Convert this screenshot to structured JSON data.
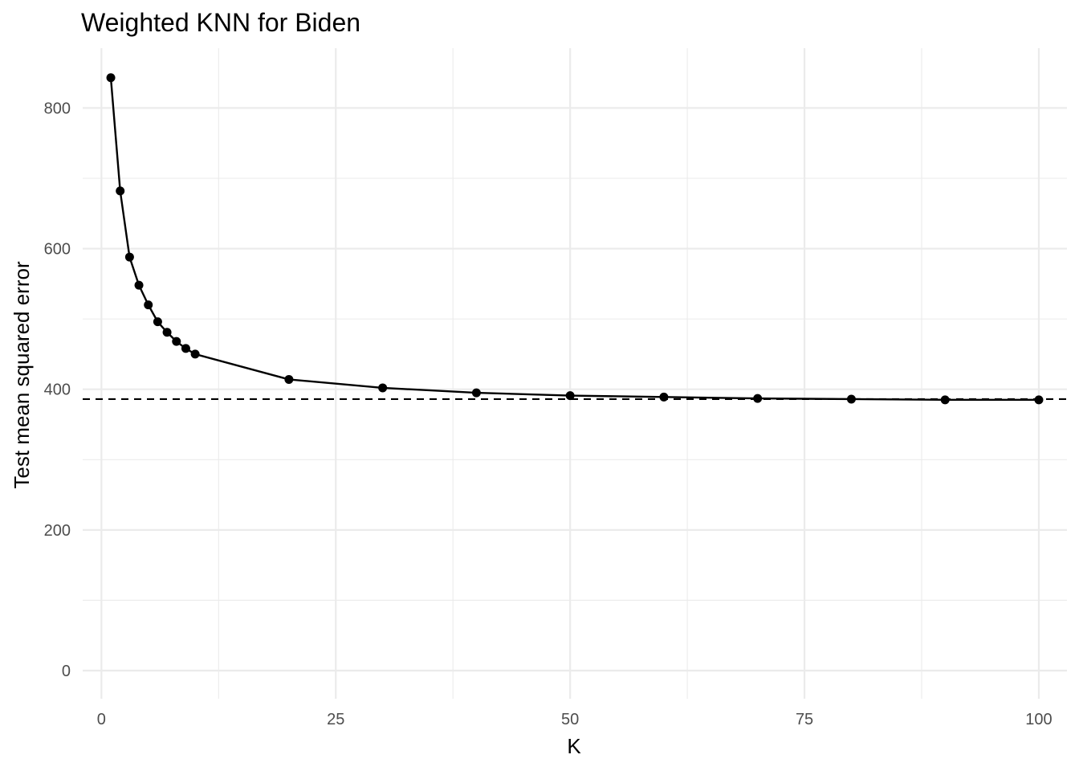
{
  "chart_data": {
    "type": "line",
    "title": "Weighted KNN for Biden",
    "xlabel": "K",
    "ylabel": "Test mean squared error",
    "xlim": [
      -2,
      103
    ],
    "ylim": [
      -40,
      885
    ],
    "x_ticks": [
      0,
      25,
      50,
      75,
      100
    ],
    "x_tick_labels": [
      "0",
      "25",
      "50",
      "75",
      "100"
    ],
    "x_minor_ticks": [
      12.5,
      37.5,
      62.5,
      87.5
    ],
    "y_ticks": [
      0,
      200,
      400,
      600,
      800
    ],
    "y_tick_labels": [
      "0",
      "200",
      "400",
      "600",
      "800"
    ],
    "y_minor_ticks": [
      100,
      300,
      500,
      700
    ],
    "grid": true,
    "series": [
      {
        "x": [
          1,
          2,
          3,
          4,
          5,
          6,
          7,
          8,
          9,
          10,
          20,
          30,
          40,
          50,
          60,
          70,
          80,
          90,
          100
        ],
        "values": [
          843,
          682,
          588,
          548,
          520,
          496,
          481,
          468,
          458,
          450,
          414,
          402,
          395,
          391,
          389,
          387,
          386,
          385,
          385
        ],
        "color": "#000000",
        "markers": true
      }
    ],
    "reference_line": {
      "y": 386,
      "style": "dashed",
      "color": "#000000"
    }
  }
}
